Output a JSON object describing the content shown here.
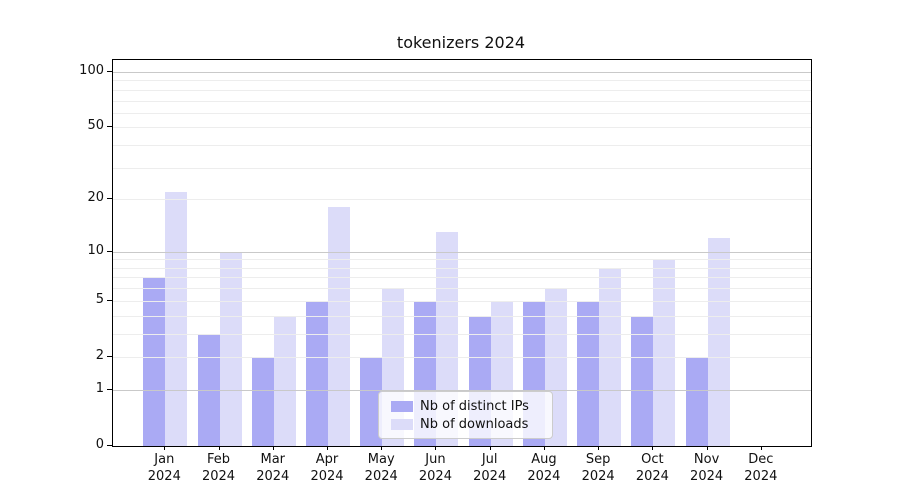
{
  "title": "tokenizers 2024",
  "chart_data": {
    "type": "bar",
    "title": "tokenizers 2024",
    "categories": [
      "Jan",
      "Feb",
      "Mar",
      "Apr",
      "May",
      "Jun",
      "Jul",
      "Aug",
      "Sep",
      "Oct",
      "Nov",
      "Dec"
    ],
    "x_year_label": "2024",
    "series": [
      {
        "name": "Nb of distinct IPs",
        "color": "#aaaaf4",
        "values": [
          7,
          3,
          2,
          5,
          2,
          5,
          4,
          5,
          5,
          4,
          2,
          0
        ]
      },
      {
        "name": "Nb of downloads",
        "color": "#dcdcf9",
        "values": [
          22,
          10,
          4,
          18,
          6,
          13,
          5,
          6,
          8,
          9,
          12,
          0
        ]
      }
    ],
    "xlabel": "",
    "ylabel": "",
    "yscale": "log1p",
    "ylim": [
      0,
      117
    ],
    "yticks": [
      0,
      1,
      2,
      5,
      10,
      20,
      50,
      100
    ],
    "major_gridlines": [
      1,
      10,
      100
    ],
    "minor_gridlines": [
      2,
      3,
      4,
      5,
      6,
      7,
      8,
      9,
      20,
      30,
      40,
      50,
      60,
      70,
      80,
      90
    ],
    "grid": "on",
    "legend_position": "lower center"
  },
  "legend": {
    "items": [
      {
        "label": "Nb of distinct IPs",
        "color": "#aaaaf4"
      },
      {
        "label": "Nb of downloads",
        "color": "#dcdcf9"
      }
    ]
  },
  "colors": {
    "bar_distinct_ips": "#aaaaf4",
    "bar_downloads": "#dcdcf9",
    "grid_major": "#c9c9c9",
    "grid_minor": "#ededed",
    "axis": "#000000",
    "text": "#111111",
    "legend_border": "#cccccc"
  }
}
